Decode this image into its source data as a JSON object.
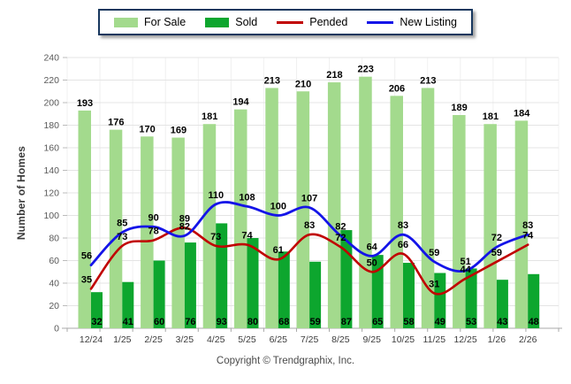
{
  "legend": {
    "items": [
      {
        "label": "For Sale",
        "color": "#a3da8d",
        "type": "bar"
      },
      {
        "label": "Sold",
        "color": "#0da62e",
        "type": "bar"
      },
      {
        "label": "Pended",
        "color": "#c00000",
        "type": "line"
      },
      {
        "label": "New Listing",
        "color": "#1414e8",
        "type": "line"
      }
    ]
  },
  "chart_data": {
    "type": "bar+line",
    "title": "",
    "categories": [
      "12/24",
      "1/25",
      "2/25",
      "3/25",
      "4/25",
      "5/25",
      "6/25",
      "7/25",
      "8/25",
      "9/25",
      "10/25",
      "11/25",
      "12/25",
      "1/26",
      "2/26"
    ],
    "series": [
      {
        "name": "For Sale",
        "kind": "bar",
        "color": "#a3da8d",
        "values": [
          193,
          176,
          170,
          169,
          181,
          194,
          213,
          210,
          218,
          223,
          206,
          213,
          189,
          181,
          184
        ]
      },
      {
        "name": "Sold",
        "kind": "bar",
        "color": "#0da62e",
        "values": [
          32,
          41,
          60,
          76,
          93,
          80,
          68,
          59,
          87,
          65,
          58,
          49,
          53,
          43,
          48
        ]
      },
      {
        "name": "Pended",
        "kind": "line",
        "color": "#c00000",
        "values": [
          35,
          73,
          78,
          89,
          73,
          74,
          61,
          83,
          72,
          50,
          66,
          31,
          44,
          59,
          74
        ]
      },
      {
        "name": "New Listing",
        "kind": "line",
        "color": "#1414e8",
        "values": [
          56,
          85,
          90,
          82,
          110,
          108,
          100,
          107,
          82,
          64,
          83,
          59,
          51,
          72,
          83
        ]
      }
    ],
    "xlabel": "",
    "ylabel": "Number of Homes",
    "ylim": [
      0,
      240
    ],
    "ytick_step": 20,
    "grid": true,
    "legend_position": "top-center"
  },
  "copyright": "Copyright © Trendgraphix, Inc."
}
